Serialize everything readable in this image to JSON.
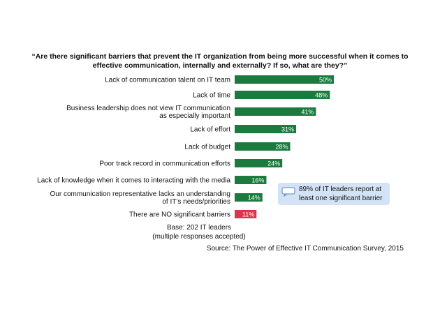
{
  "title": "“Are there significant barriers that prevent the IT organization from being more successful when it comes to effective communication, internally and externally? If so, what are they?”",
  "callout": "89% of IT leaders report at least one significant barrier",
  "base": [
    "Base: 202 IT leaders",
    "(multiple responses accepted)"
  ],
  "source": "Source: The Power of Effective IT Communication Survey, 2015",
  "colors": {
    "bar": "#1b7a3e",
    "highlight": "#e0334d",
    "callout_bg": "#d3e3f5"
  },
  "chart_data": {
    "type": "bar",
    "orientation": "horizontal",
    "xlim": [
      0,
      50
    ],
    "grid": false,
    "value_suffix": "%",
    "categories": [
      [
        "Lack of communication talent on IT team"
      ],
      [
        "Lack of time"
      ],
      [
        "Business leadership does not view IT communication",
        "as especially important"
      ],
      [
        "Lack of effort"
      ],
      [
        "Lack of budget"
      ],
      [
        "Poor track record in communication efforts"
      ],
      [
        "Lack of knowledge when it comes to interacting with the media"
      ],
      [
        "Our communication representative lacks an understanding",
        "of IT’s needs/priorities"
      ],
      [
        "There are NO significant barriers"
      ]
    ],
    "values": [
      50,
      48,
      41,
      31,
      28,
      24,
      16,
      14,
      11
    ],
    "highlight_index": 8
  }
}
